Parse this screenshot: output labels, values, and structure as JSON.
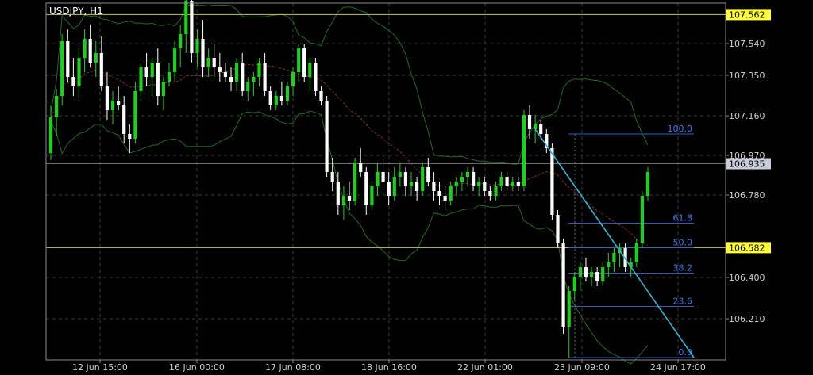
{
  "chart_data": {
    "type": "candlestick",
    "title": "USDJPY, H1",
    "x_tick_labels": [
      "12 Jun 15:00",
      "16 Jun 00:00",
      "17 Jun 08:00",
      "18 Jun 16:00",
      "22 Jun 01:00",
      "23 Jun 09:00",
      "24 Jun 17:00"
    ],
    "y_tick_labels": [
      "107.540",
      "107.350",
      "107.160",
      "106.970",
      "106.780",
      "106.400",
      "106.210"
    ],
    "ylim": [
      106.11,
      107.61
    ],
    "grid": true,
    "horizontal_levels": [
      {
        "price": 107.562,
        "label": "107.562",
        "color": "#c8c850"
      },
      {
        "price": 106.582,
        "label": "106.582",
        "color": "#c8c850"
      }
    ],
    "current_price": {
      "price": 106.935,
      "label": "106.935"
    },
    "fibonacci": {
      "color": "#2a5fc8",
      "levels": [
        {
          "label": "100.0",
          "price": 107.06
        },
        {
          "label": "61.8",
          "price": 106.685
        },
        {
          "label": "50.0",
          "price": 106.582
        },
        {
          "label": "38.2",
          "price": 106.475
        },
        {
          "label": "23.6",
          "price": 106.335
        },
        {
          "label": "0.0",
          "price": 106.12
        }
      ]
    },
    "trendline": {
      "color": "#2bb7d8",
      "from": {
        "candle": 86,
        "price": 107.08
      },
      "to": {
        "candle": 107,
        "price": 106.12
      }
    },
    "colors": {
      "bull": "#19d219",
      "bear": "#ffffff",
      "bands": "#1f6b1f",
      "ma": "#8a2a2a",
      "grid": "#3a3a3a"
    },
    "candles": [
      [
        106.98,
        107.18,
        106.95,
        107.13
      ],
      [
        107.13,
        107.25,
        107.05,
        107.22
      ],
      [
        107.22,
        107.48,
        107.18,
        107.45
      ],
      [
        107.45,
        107.5,
        107.28,
        107.3
      ],
      [
        107.3,
        107.38,
        107.22,
        107.26
      ],
      [
        107.26,
        107.42,
        107.2,
        107.38
      ],
      [
        107.38,
        107.5,
        107.32,
        107.46
      ],
      [
        107.46,
        107.52,
        107.34,
        107.36
      ],
      [
        107.36,
        107.45,
        107.3,
        107.4
      ],
      [
        107.4,
        107.47,
        107.24,
        107.26
      ],
      [
        107.26,
        107.32,
        107.12,
        107.16
      ],
      [
        107.16,
        107.24,
        107.1,
        107.2
      ],
      [
        107.2,
        107.26,
        107.16,
        107.18
      ],
      [
        107.18,
        107.22,
        107.02,
        107.06
      ],
      [
        107.06,
        107.1,
        106.98,
        107.04
      ],
      [
        107.04,
        107.28,
        107.02,
        107.24
      ],
      [
        107.24,
        107.36,
        107.2,
        107.34
      ],
      [
        107.34,
        107.4,
        107.26,
        107.3
      ],
      [
        107.3,
        107.38,
        107.22,
        107.36
      ],
      [
        107.36,
        107.42,
        107.18,
        107.22
      ],
      [
        107.22,
        107.3,
        107.16,
        107.28
      ],
      [
        107.28,
        107.36,
        107.26,
        107.32
      ],
      [
        107.32,
        107.45,
        107.28,
        107.42
      ],
      [
        107.42,
        107.52,
        107.34,
        107.48
      ],
      [
        107.48,
        107.66,
        107.4,
        107.62
      ],
      [
        107.62,
        107.65,
        107.36,
        107.4
      ],
      [
        107.4,
        107.5,
        107.34,
        107.46
      ],
      [
        107.46,
        107.54,
        107.3,
        107.34
      ],
      [
        107.34,
        107.42,
        107.3,
        107.38
      ],
      [
        107.38,
        107.44,
        107.3,
        107.34
      ],
      [
        107.34,
        107.4,
        107.28,
        107.32
      ],
      [
        107.32,
        107.36,
        107.28,
        107.3
      ],
      [
        107.3,
        107.34,
        107.24,
        107.28
      ],
      [
        107.28,
        107.38,
        107.24,
        107.36
      ],
      [
        107.36,
        107.4,
        107.22,
        107.24
      ],
      [
        107.24,
        107.3,
        107.2,
        107.28
      ],
      [
        107.28,
        107.32,
        107.22,
        107.3
      ],
      [
        107.3,
        107.38,
        107.26,
        107.36
      ],
      [
        107.36,
        107.4,
        107.22,
        107.24
      ],
      [
        107.24,
        107.26,
        107.16,
        107.18
      ],
      [
        107.18,
        107.24,
        107.16,
        107.22
      ],
      [
        107.22,
        107.28,
        107.18,
        107.2
      ],
      [
        107.2,
        107.28,
        107.18,
        107.26
      ],
      [
        107.26,
        107.34,
        107.22,
        107.32
      ],
      [
        107.32,
        107.44,
        107.28,
        107.42
      ],
      [
        107.42,
        107.44,
        107.28,
        107.3
      ],
      [
        107.3,
        107.38,
        107.24,
        107.36
      ],
      [
        107.36,
        107.38,
        107.22,
        107.24
      ],
      [
        107.24,
        107.26,
        107.18,
        107.2
      ],
      [
        107.2,
        107.22,
        106.88,
        106.9
      ],
      [
        106.9,
        106.96,
        106.82,
        106.86
      ],
      [
        106.86,
        106.9,
        106.72,
        106.76
      ],
      [
        106.76,
        106.84,
        106.7,
        106.8
      ],
      [
        106.8,
        106.86,
        106.74,
        106.78
      ],
      [
        106.78,
        106.96,
        106.76,
        106.94
      ],
      [
        106.94,
        107.0,
        106.88,
        106.9
      ],
      [
        106.9,
        106.92,
        106.72,
        106.76
      ],
      [
        106.76,
        106.86,
        106.74,
        106.84
      ],
      [
        106.84,
        106.94,
        106.8,
        106.9
      ],
      [
        106.9,
        106.96,
        106.84,
        106.86
      ],
      [
        106.86,
        106.9,
        106.76,
        106.8
      ],
      [
        106.8,
        106.92,
        106.78,
        106.88
      ],
      [
        106.88,
        106.94,
        106.84,
        106.9
      ],
      [
        106.9,
        106.92,
        106.8,
        106.84
      ],
      [
        106.84,
        106.9,
        106.8,
        106.86
      ],
      [
        106.86,
        106.88,
        106.78,
        106.82
      ],
      [
        106.82,
        106.94,
        106.8,
        106.92
      ],
      [
        106.92,
        106.96,
        106.84,
        106.86
      ],
      [
        106.86,
        106.9,
        106.78,
        106.82
      ],
      [
        106.82,
        106.86,
        106.76,
        106.8
      ],
      [
        106.8,
        106.84,
        106.74,
        106.78
      ],
      [
        106.78,
        106.86,
        106.76,
        106.84
      ],
      [
        106.84,
        106.88,
        106.8,
        106.86
      ],
      [
        106.86,
        106.9,
        106.82,
        106.88
      ],
      [
        106.88,
        106.92,
        106.84,
        106.9
      ],
      [
        106.9,
        106.92,
        106.82,
        106.84
      ],
      [
        106.84,
        106.88,
        106.8,
        106.86
      ],
      [
        106.86,
        106.88,
        106.8,
        106.82
      ],
      [
        106.82,
        106.84,
        106.78,
        106.8
      ],
      [
        106.8,
        106.86,
        106.78,
        106.84
      ],
      [
        106.84,
        106.9,
        106.82,
        106.88
      ],
      [
        106.88,
        106.9,
        106.82,
        106.84
      ],
      [
        106.84,
        106.88,
        106.82,
        106.86
      ],
      [
        106.86,
        106.88,
        106.82,
        106.84
      ],
      [
        106.84,
        107.16,
        106.82,
        107.14
      ],
      [
        107.14,
        107.18,
        107.04,
        107.08
      ],
      [
        107.08,
        107.14,
        107.02,
        107.1
      ],
      [
        107.1,
        107.12,
        107.04,
        107.06
      ],
      [
        107.06,
        107.08,
        106.98,
        107.0
      ],
      [
        107.0,
        107.02,
        106.7,
        106.72
      ],
      [
        106.72,
        106.74,
        106.58,
        106.6
      ],
      [
        106.6,
        106.62,
        106.22,
        106.25
      ],
      [
        106.25,
        106.42,
        106.12,
        106.4
      ],
      [
        106.4,
        106.48,
        106.36,
        106.46
      ],
      [
        106.46,
        106.52,
        106.4,
        106.5
      ],
      [
        106.5,
        106.54,
        106.44,
        106.46
      ],
      [
        106.46,
        106.5,
        106.42,
        106.48
      ],
      [
        106.48,
        106.5,
        106.42,
        106.44
      ],
      [
        106.44,
        106.52,
        106.42,
        106.5
      ],
      [
        106.5,
        106.56,
        106.46,
        106.52
      ],
      [
        106.52,
        106.58,
        106.48,
        106.56
      ],
      [
        106.56,
        106.6,
        106.5,
        106.58
      ],
      [
        106.58,
        106.6,
        106.48,
        106.5
      ],
      [
        106.5,
        106.54,
        106.46,
        106.52
      ],
      [
        106.52,
        106.62,
        106.5,
        106.6
      ],
      [
        106.6,
        106.82,
        106.58,
        106.8
      ],
      [
        106.8,
        106.92,
        106.78,
        106.9
      ]
    ]
  }
}
